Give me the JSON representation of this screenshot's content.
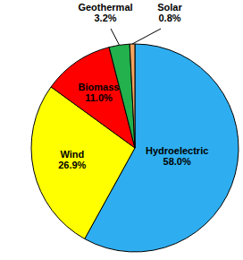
{
  "chart_data": {
    "type": "pie",
    "categories": [
      "Hydroelectric",
      "Wind",
      "Biomass",
      "Geothermal",
      "Solar"
    ],
    "values": [
      58.0,
      26.9,
      11.0,
      3.2,
      0.8
    ],
    "value_labels": [
      "58.0%",
      "26.9%",
      "11.0%",
      "3.2%",
      "0.8%"
    ],
    "colors": [
      "#2eaef0",
      "#ffff00",
      "#ff0000",
      "#22b14c",
      "#f4a460"
    ],
    "data_labels": true
  }
}
